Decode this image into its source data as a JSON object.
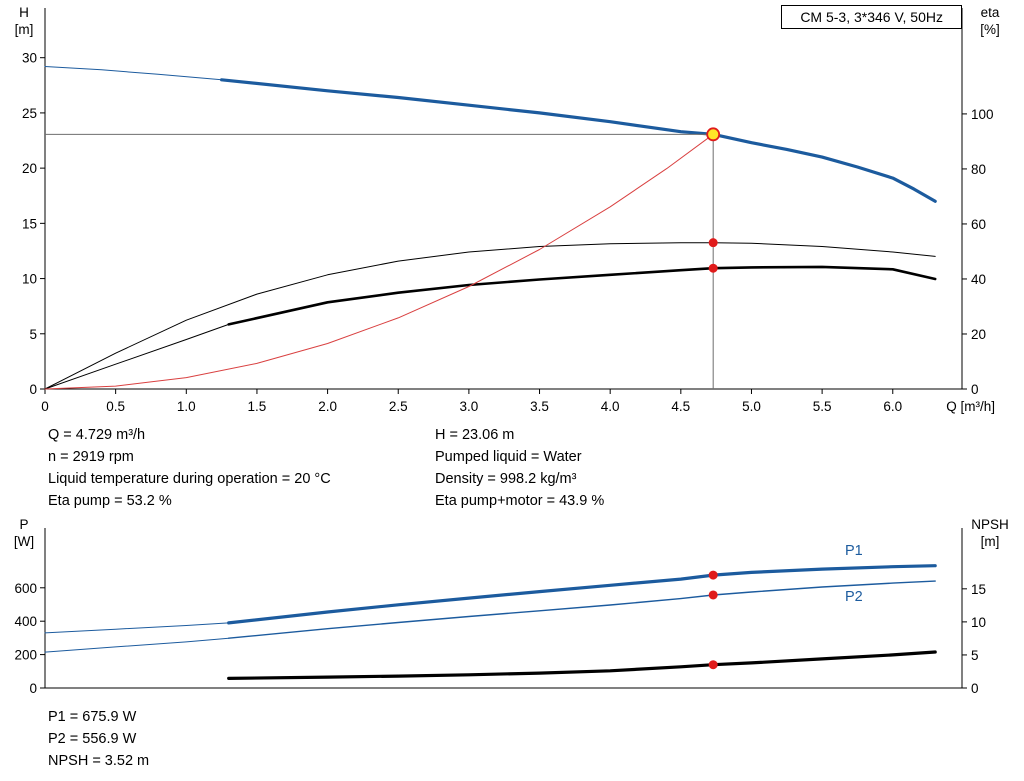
{
  "header": {
    "model": "CM 5-3, 3*346 V, 50Hz"
  },
  "results": {
    "left": [
      "Q = 4.729 m³/h",
      "n = 2919 rpm",
      "Liquid temperature during operation = 20 °C",
      "Eta pump = 53.2 %"
    ],
    "right": [
      "H = 23.06 m",
      "Pumped liquid = Water",
      "Density = 998.2 kg/m³",
      "Eta pump+motor = 43.9 %"
    ],
    "power": [
      "P1 = 675.9 W",
      "P2 = 556.9 W",
      "NPSH = 3.52 m"
    ]
  },
  "chart_data": [
    {
      "type": "line",
      "title": "CM 5-3, 3*346 V, 50Hz",
      "x_axis": {
        "label": "Q [m³/h]",
        "min": 0,
        "max": 6.49,
        "ticks": [
          [
            0,
            "0"
          ],
          [
            0.5,
            "0.5"
          ],
          [
            1,
            "1.0"
          ],
          [
            1.5,
            "1.5"
          ],
          [
            2,
            "2.0"
          ],
          [
            2.5,
            "2.5"
          ],
          [
            3,
            "3.0"
          ],
          [
            3.5,
            "3.5"
          ],
          [
            4,
            "4.0"
          ],
          [
            4.5,
            "4.5"
          ],
          [
            5,
            "5.0"
          ],
          [
            5.5,
            "5.5"
          ],
          [
            6,
            "6.0"
          ]
        ]
      },
      "y_axes": {
        "h": {
          "title": "H",
          "unit": "[m]",
          "min": 0,
          "max": 34.5,
          "side": "left",
          "ticks": [
            [
              0,
              "0"
            ],
            [
              5,
              "5"
            ],
            [
              10,
              "10"
            ],
            [
              15,
              "15"
            ],
            [
              20,
              "20"
            ],
            [
              25,
              "25"
            ],
            [
              30,
              "30"
            ]
          ]
        },
        "eta": {
          "title": "eta",
          "unit": "[%]",
          "min": 0,
          "max": 138.5,
          "side": "right",
          "ticks": [
            [
              0,
              "0"
            ],
            [
              20,
              "20"
            ],
            [
              40,
              "40"
            ],
            [
              60,
              "60"
            ],
            [
              80,
              "80"
            ],
            [
              100,
              "100"
            ]
          ]
        }
      },
      "series": [
        {
          "name": "pump-head-lowflow",
          "axis": "h",
          "color": "#1c5b9e",
          "width": 1,
          "q": [
            0,
            0.4,
            0.8,
            1.25
          ],
          "v": [
            29.2,
            28.9,
            28.5,
            28.0
          ]
        },
        {
          "name": "pump-head",
          "axis": "h",
          "color": "#1c5b9e",
          "width": 3.2,
          "q": [
            1.25,
            2.0,
            2.5,
            3.0,
            3.5,
            4.0,
            4.5,
            4.729,
            5.0,
            5.25,
            5.5,
            5.75,
            6.0,
            6.15,
            6.3
          ],
          "v": [
            28.0,
            27.0,
            26.4,
            25.7,
            25.0,
            24.2,
            23.3,
            23.06,
            22.3,
            21.7,
            21.0,
            20.1,
            19.1,
            18.1,
            17.0
          ]
        },
        {
          "name": "eta-pump",
          "axis": "eta",
          "color": "#000000",
          "width": 1,
          "q": [
            0,
            0.5,
            1.0,
            1.5,
            2.0,
            2.5,
            3.0,
            3.5,
            4.0,
            4.5,
            4.729,
            5.0,
            5.5,
            6.0,
            6.3
          ],
          "v": [
            0,
            13,
            25,
            34.5,
            41.5,
            46.5,
            49.8,
            51.8,
            52.8,
            53.2,
            53.2,
            53.0,
            51.8,
            49.8,
            48.2
          ]
        },
        {
          "name": "eta-pump-motor-lowflow",
          "axis": "eta",
          "color": "#000000",
          "width": 1,
          "q": [
            0,
            0.5,
            1.0,
            1.3
          ],
          "v": [
            0,
            9,
            18,
            23.5
          ]
        },
        {
          "name": "eta-pump-motor",
          "axis": "eta",
          "color": "#000000",
          "width": 2.6,
          "q": [
            1.3,
            2.0,
            2.5,
            3.0,
            3.5,
            4.0,
            4.5,
            4.729,
            5.0,
            5.5,
            6.0,
            6.3
          ],
          "v": [
            23.5,
            31.5,
            35.0,
            37.8,
            39.8,
            41.5,
            43.2,
            43.9,
            44.2,
            44.4,
            43.5,
            40.0
          ]
        },
        {
          "name": "system-curve",
          "axis": "h",
          "color": "#d94040",
          "width": 1,
          "q": [
            0,
            0.5,
            1.0,
            1.5,
            2.0,
            2.5,
            3.0,
            3.5,
            4.0,
            4.4,
            4.729
          ],
          "v": [
            0,
            0.26,
            1.03,
            2.32,
            4.12,
            6.44,
            9.28,
            12.63,
            16.5,
            19.96,
            23.06
          ]
        }
      ],
      "crosshair": {
        "q": 4.729,
        "v": 23.06,
        "axis": "h",
        "color": "#6e6e6e"
      },
      "markers": [
        {
          "name": "duty-point",
          "q": 4.729,
          "v": 23.06,
          "axis": "h",
          "r": 6,
          "fill": "#ffe428",
          "stroke": "#e01b1b",
          "stroke_width": 1.8
        },
        {
          "name": "eta-pump-point",
          "q": 4.729,
          "v": 53.2,
          "axis": "eta",
          "r": 4.5,
          "fill": "#e01b1b",
          "stroke": "none",
          "stroke_width": 0
        },
        {
          "name": "eta-pump-motor-point",
          "q": 4.729,
          "v": 43.9,
          "axis": "eta",
          "r": 4.5,
          "fill": "#e01b1b",
          "stroke": "none",
          "stroke_width": 0
        }
      ]
    },
    {
      "type": "line",
      "title": "",
      "x_axis": {
        "label": "",
        "min": 0,
        "max": 6.49,
        "ticks": []
      },
      "y_axes": {
        "p": {
          "title": "P",
          "unit": "[W]",
          "min": 0,
          "max": 958,
          "side": "left",
          "ticks": [
            [
              0,
              "0"
            ],
            [
              200,
              "200"
            ],
            [
              400,
              "400"
            ],
            [
              600,
              "600"
            ]
          ]
        },
        "npsh": {
          "title": "NPSH",
          "unit": "[m]",
          "min": 0,
          "max": 24.2,
          "side": "right",
          "ticks": [
            [
              0,
              "0"
            ],
            [
              5,
              "5"
            ],
            [
              10,
              "10"
            ],
            [
              15,
              "15"
            ]
          ]
        }
      },
      "series": [
        {
          "name": "p1-lowflow",
          "axis": "p",
          "color": "#1c5b9e",
          "width": 1,
          "q": [
            0,
            0.5,
            1.0,
            1.3
          ],
          "v": [
            330,
            352,
            374,
            390
          ]
        },
        {
          "name": "p1",
          "axis": "p",
          "color": "#1c5b9e",
          "width": 3.2,
          "q": [
            1.3,
            2.0,
            2.5,
            3.0,
            3.5,
            4.0,
            4.5,
            4.729,
            5.0,
            5.5,
            6.0,
            6.3
          ],
          "v": [
            390,
            455,
            498,
            538,
            577,
            615,
            652,
            676,
            692,
            712,
            726,
            732
          ]
        },
        {
          "name": "p2-lowflow",
          "axis": "p",
          "color": "#1c5b9e",
          "width": 1,
          "q": [
            0,
            0.5,
            1.0,
            1.3
          ],
          "v": [
            215,
            246,
            276,
            298
          ]
        },
        {
          "name": "p2",
          "axis": "p",
          "color": "#1c5b9e",
          "width": 1.4,
          "q": [
            1.3,
            2.0,
            2.5,
            3.0,
            3.5,
            4.0,
            4.5,
            4.729,
            5.0,
            5.5,
            6.0,
            6.3
          ],
          "v": [
            298,
            355,
            392,
            428,
            462,
            497,
            535,
            557,
            575,
            605,
            628,
            640
          ]
        },
        {
          "name": "npsh",
          "axis": "npsh",
          "color": "#000000",
          "width": 3.2,
          "q": [
            1.3,
            2.0,
            2.5,
            3.0,
            3.5,
            4.0,
            4.5,
            4.729,
            5.0,
            5.5,
            6.0,
            6.3
          ],
          "v": [
            1.45,
            1.65,
            1.8,
            2.0,
            2.25,
            2.6,
            3.2,
            3.52,
            3.8,
            4.4,
            5.0,
            5.45
          ]
        }
      ],
      "markers": [
        {
          "name": "p1-point",
          "q": 4.729,
          "v": 675.9,
          "axis": "p",
          "r": 4.5,
          "fill": "#e01b1b",
          "stroke": "none",
          "stroke_width": 0
        },
        {
          "name": "p2-point",
          "q": 4.729,
          "v": 556.9,
          "axis": "p",
          "r": 4.5,
          "fill": "#e01b1b",
          "stroke": "none",
          "stroke_width": 0
        },
        {
          "name": "npsh-point",
          "q": 4.729,
          "v": 3.52,
          "axis": "npsh",
          "r": 4.5,
          "fill": "#e01b1b",
          "stroke": "none",
          "stroke_width": 0
        }
      ],
      "curve_labels": [
        {
          "text": "P1",
          "color": "#1c5b9e"
        },
        {
          "text": "P2",
          "color": "#1c5b9e"
        }
      ]
    }
  ]
}
